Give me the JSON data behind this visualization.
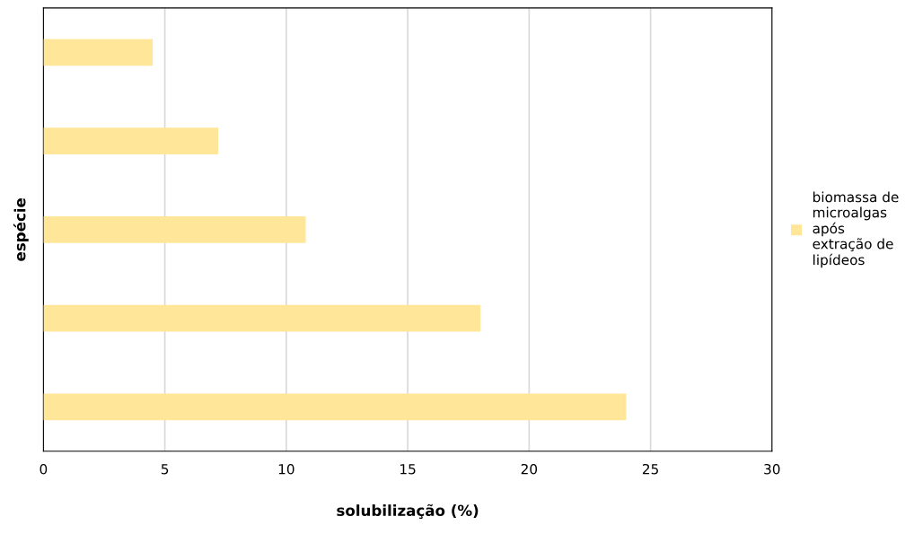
{
  "chart_data": {
    "type": "bar",
    "orientation": "horizontal",
    "xlabel": "solubilização (%)",
    "ylabel": "espécie",
    "categories": [
      null,
      null,
      null,
      null,
      null
    ],
    "series": [
      {
        "name": "biomassa de\nmicroalgas\napós\nextração de\nlipídeos",
        "color": "#ffe699",
        "values": [
          4.5,
          7.2,
          10.8,
          18,
          24
        ]
      }
    ],
    "xlim": [
      0,
      30
    ],
    "xticks": [
      0,
      5,
      10,
      15,
      20,
      25,
      30
    ],
    "grid": "x",
    "legend": "right",
    "tick_labels": "x"
  }
}
